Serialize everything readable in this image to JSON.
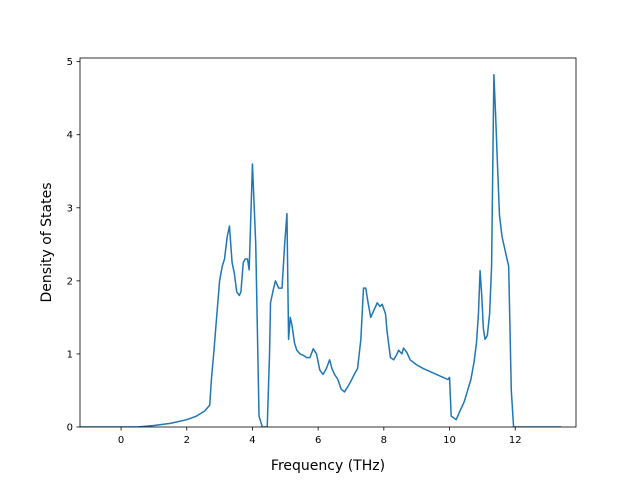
{
  "chart_data": {
    "type": "line",
    "title": "",
    "xlabel": "Frequency (THz)",
    "ylabel": "Density of States",
    "xlim": [
      -1.25,
      13.85
    ],
    "ylim": [
      0,
      5.05
    ],
    "xticks": [
      0,
      2,
      4,
      6,
      8,
      10,
      12
    ],
    "yticks": [
      0,
      1,
      2,
      3,
      4,
      5
    ],
    "grid": false,
    "legend": "none",
    "series": [
      {
        "color": "#1f77b4",
        "x": [
          -1.25,
          -1.0,
          0.0,
          0.5,
          1.0,
          1.5,
          2.0,
          2.3,
          2.55,
          2.7,
          2.75,
          2.82,
          2.9,
          3.0,
          3.08,
          3.15,
          3.23,
          3.3,
          3.38,
          3.45,
          3.52,
          3.6,
          3.65,
          3.72,
          3.78,
          3.85,
          3.9,
          4.0,
          4.1,
          4.2,
          4.3,
          4.45,
          4.52,
          4.55,
          4.62,
          4.7,
          4.8,
          4.9,
          4.98,
          5.05,
          5.1,
          5.15,
          5.2,
          5.28,
          5.35,
          5.45,
          5.55,
          5.65,
          5.75,
          5.85,
          5.95,
          6.05,
          6.15,
          6.25,
          6.35,
          6.42,
          6.5,
          6.6,
          6.7,
          6.8,
          6.9,
          7.0,
          7.1,
          7.2,
          7.3,
          7.38,
          7.45,
          7.52,
          7.6,
          7.7,
          7.8,
          7.88,
          7.95,
          8.05,
          8.1,
          8.2,
          8.3,
          8.4,
          8.45,
          8.55,
          8.6,
          8.7,
          8.8,
          9.0,
          9.2,
          9.4,
          9.6,
          9.8,
          9.95,
          10.0,
          10.05,
          10.2,
          10.35,
          10.45,
          10.55,
          10.65,
          10.75,
          10.82,
          10.88,
          10.93,
          10.98,
          11.03,
          11.08,
          11.15,
          11.22,
          11.28,
          11.35,
          11.4,
          11.45,
          11.52,
          11.6,
          11.7,
          11.8,
          11.88,
          11.95,
          12.05,
          12.5,
          13.2,
          13.4
        ],
        "y": [
          0.0,
          0.0,
          0.0,
          0.0,
          0.02,
          0.05,
          0.1,
          0.15,
          0.22,
          0.3,
          0.65,
          1.0,
          1.45,
          2.0,
          2.2,
          2.3,
          2.6,
          2.75,
          2.25,
          2.1,
          1.85,
          1.8,
          1.85,
          2.25,
          2.3,
          2.3,
          2.15,
          3.6,
          2.5,
          0.15,
          0.0,
          0.0,
          1.0,
          1.7,
          1.85,
          2.0,
          1.9,
          1.9,
          2.5,
          2.92,
          1.2,
          1.5,
          1.4,
          1.15,
          1.05,
          1.0,
          0.98,
          0.95,
          0.95,
          1.07,
          1.0,
          0.78,
          0.72,
          0.8,
          0.92,
          0.8,
          0.72,
          0.65,
          0.52,
          0.48,
          0.55,
          0.63,
          0.72,
          0.8,
          1.2,
          1.9,
          1.9,
          1.7,
          1.5,
          1.6,
          1.7,
          1.65,
          1.68,
          1.55,
          1.3,
          0.95,
          0.92,
          1.0,
          1.05,
          1.0,
          1.08,
          1.02,
          0.92,
          0.85,
          0.8,
          0.76,
          0.72,
          0.68,
          0.65,
          0.68,
          0.15,
          0.1,
          0.25,
          0.35,
          0.5,
          0.65,
          0.9,
          1.15,
          1.55,
          2.14,
          1.8,
          1.35,
          1.2,
          1.25,
          1.55,
          2.2,
          4.82,
          4.3,
          3.7,
          2.9,
          2.6,
          2.4,
          2.2,
          0.5,
          0.0,
          0.0,
          0.0,
          0.0,
          0.0
        ]
      }
    ]
  }
}
